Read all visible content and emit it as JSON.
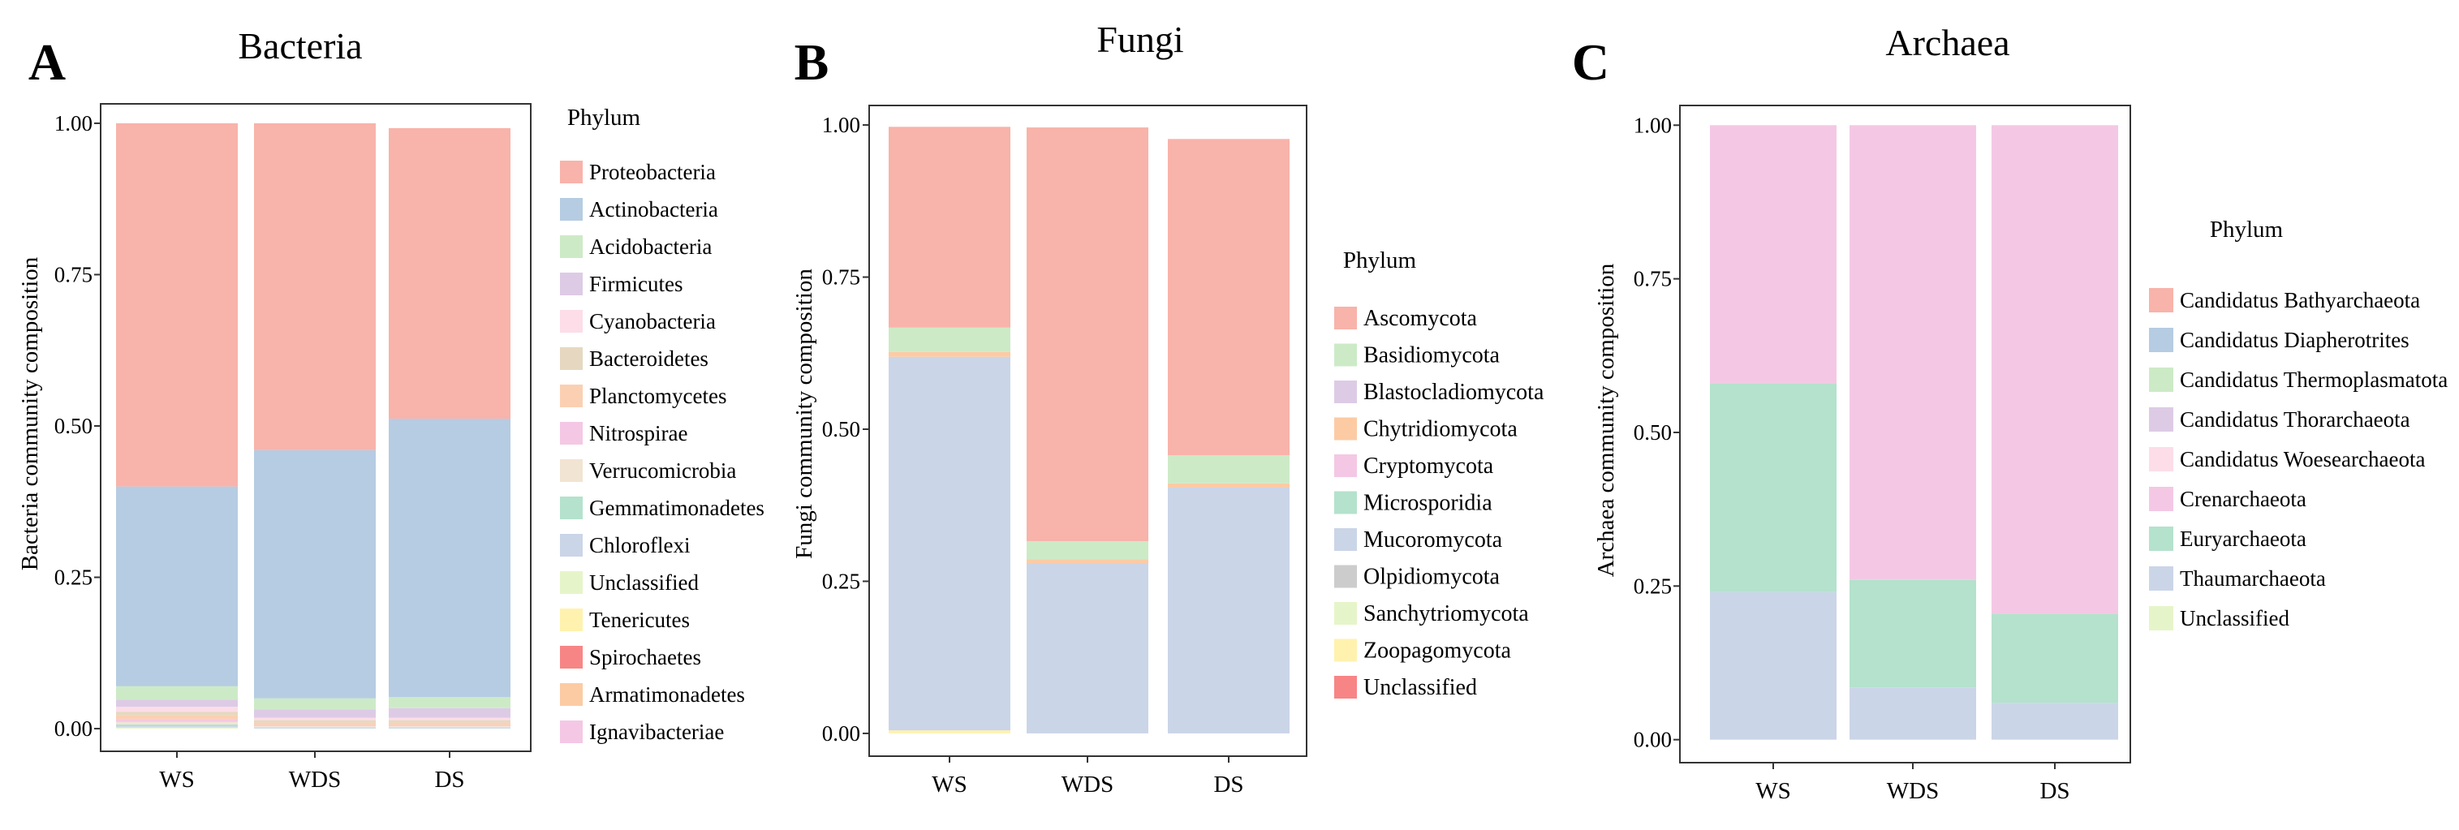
{
  "colors": {
    "Proteobacteria": "#F8B3AA",
    "Actinobacteria": "#B5CCE2",
    "Acidobacteria": "#CDEAC7",
    "Firmicutes": "#DDCBE6",
    "Cyanobacteria": "#FCDDE8",
    "Bacteroidetes": "#E6D8C0",
    "Planctomycetes": "#FBD0B2",
    "Nitrospirae": "#F4C8E4",
    "Verrucomicrobia": "#F2E4D2",
    "Gemmatimonadetes": "#B4E2CD",
    "Chloroflexi": "#CBD5E8",
    "Unclassified_bac": "#E6F5C9",
    "Tenericutes": "#FFF2AE",
    "Spirochaetes": "#F88585",
    "Armatimonadetes": "#FCCBA4",
    "Ignavibacteriae": "#F4C8E4",
    "Ascomycota": "#F8B3AA",
    "Basidiomycota": "#CDEAC7",
    "Blastocladiomycota": "#DDCBE6",
    "Chytridiomycota": "#FCCBA4",
    "Cryptomycota": "#F4C8E4",
    "Microsporidia": "#B4E2CD",
    "Mucoromycota": "#CBD5E8",
    "Olpidiomycota": "#CCCCCC",
    "Sanchytriomycota": "#E6F5C9",
    "Zoopagomycota": "#FFF2AE",
    "Unclassified_fungi": "#F88585",
    "Candidatus Bathyarchaeota": "#F8B3AA",
    "Candidatus Diapherotrites": "#B5CCE2",
    "Candidatus Thermoplasmatota": "#CDEAC7",
    "Candidatus Thorarchaeota": "#DDCBE6",
    "Candidatus Woesearchaeota": "#FCDDE8",
    "Crenarchaeota": "#F4C8E4",
    "Euryarchaeota": "#B4E2CD",
    "Thaumarchaeota": "#CBD5E8",
    "Unclassified_arch": "#E6F5C9"
  },
  "chart_data": [
    {
      "type": "bar",
      "stacked": true,
      "panel_letter": "A",
      "title": "Bacteria",
      "xlabel": "",
      "ylabel": "Bacteria community composition",
      "ylim": [
        0,
        1
      ],
      "yticks": [
        "0.00",
        "0.25",
        "0.50",
        "0.75",
        "1.00"
      ],
      "categories": [
        "WS",
        "WDS",
        "DS"
      ],
      "legend_title": "Phylum",
      "series": [
        {
          "name": "Proteobacteria",
          "color_key": "Proteobacteria",
          "values": [
            0.6,
            0.54,
            0.48
          ]
        },
        {
          "name": "Actinobacteria",
          "color_key": "Actinobacteria",
          "values": [
            0.33,
            0.41,
            0.46
          ]
        },
        {
          "name": "Acidobacteria",
          "color_key": "Acidobacteria",
          "values": [
            0.022,
            0.018,
            0.018
          ]
        },
        {
          "name": "Firmicutes",
          "color_key": "Firmicutes",
          "values": [
            0.012,
            0.014,
            0.016
          ]
        },
        {
          "name": "Cyanobacteria",
          "color_key": "Cyanobacteria",
          "values": [
            0.008,
            0.004,
            0.004
          ]
        },
        {
          "name": "Bacteroidetes",
          "color_key": "Bacteroidetes",
          "values": [
            0.006,
            0.004,
            0.004
          ]
        },
        {
          "name": "Planctomycetes",
          "color_key": "Planctomycetes",
          "values": [
            0.006,
            0.004,
            0.004
          ]
        },
        {
          "name": "Nitrospirae",
          "color_key": "Nitrospirae",
          "values": [
            0.005,
            0.002,
            0.002
          ]
        },
        {
          "name": "Verrucomicrobia",
          "color_key": "Verrucomicrobia",
          "values": [
            0.004,
            0.002,
            0.002
          ]
        },
        {
          "name": "Gemmatimonadetes",
          "color_key": "Gemmatimonadetes",
          "values": [
            0.003,
            0.001,
            0.001
          ]
        },
        {
          "name": "Chloroflexi",
          "color_key": "Chloroflexi",
          "values": [
            0.002,
            0.001,
            0.001
          ]
        },
        {
          "name": "Unclassified",
          "color_key": "Unclassified_bac",
          "values": [
            0.002,
            0,
            0
          ]
        },
        {
          "name": "Tenericutes",
          "color_key": "Tenericutes",
          "values": [
            0,
            0,
            0
          ]
        },
        {
          "name": "Spirochaetes",
          "color_key": "Spirochaetes",
          "values": [
            0,
            0,
            0
          ]
        },
        {
          "name": "Armatimonadetes",
          "color_key": "Armatimonadetes",
          "values": [
            0,
            0,
            0
          ]
        },
        {
          "name": "Ignavibacteriae",
          "color_key": "Ignavibacteriae",
          "values": [
            0,
            0,
            0
          ]
        }
      ]
    },
    {
      "type": "bar",
      "stacked": true,
      "panel_letter": "B",
      "title": "Fungi",
      "xlabel": "",
      "ylabel": "Fungi community composition",
      "ylim": [
        0,
        1
      ],
      "yticks": [
        "0.00",
        "0.25",
        "0.50",
        "0.75",
        "1.00"
      ],
      "categories": [
        "WS",
        "WDS",
        "DS"
      ],
      "legend_title": "Phylum",
      "series": [
        {
          "name": "Ascomycota",
          "color_key": "Ascomycota",
          "values": [
            0.33,
            0.68,
            0.52
          ]
        },
        {
          "name": "Basidiomycota",
          "color_key": "Basidiomycota",
          "values": [
            0.04,
            0.03,
            0.046
          ]
        },
        {
          "name": "Blastocladiomycota",
          "color_key": "Blastocladiomycota",
          "values": [
            0,
            0,
            0
          ]
        },
        {
          "name": "Chytridiomycota",
          "color_key": "Chytridiomycota",
          "values": [
            0.008,
            0.006,
            0.007
          ]
        },
        {
          "name": "Cryptomycota",
          "color_key": "Cryptomycota",
          "values": [
            0,
            0,
            0
          ]
        },
        {
          "name": "Microsporidia",
          "color_key": "Microsporidia",
          "values": [
            0,
            0,
            0
          ]
        },
        {
          "name": "Mucoromycota",
          "color_key": "Mucoromycota",
          "values": [
            0.614,
            0.28,
            0.404
          ]
        },
        {
          "name": "Olpidiomycota",
          "color_key": "Olpidiomycota",
          "values": [
            0,
            0,
            0
          ]
        },
        {
          "name": "Sanchytriomycota",
          "color_key": "Sanchytriomycota",
          "values": [
            0,
            0,
            0
          ]
        },
        {
          "name": "Zoopagomycota",
          "color_key": "Zoopagomycota",
          "values": [
            0.005,
            0,
            0
          ]
        },
        {
          "name": "Unclassified",
          "color_key": "Unclassified_fungi",
          "values": [
            0,
            0,
            0
          ]
        }
      ]
    },
    {
      "type": "bar",
      "stacked": true,
      "panel_letter": "C",
      "title": "Archaea",
      "xlabel": "",
      "ylabel": "Archaea community composition",
      "ylim": [
        0,
        1
      ],
      "yticks": [
        "0.00",
        "0.25",
        "0.50",
        "0.75",
        "1.00"
      ],
      "categories": [
        "WS",
        "WDS",
        "DS"
      ],
      "legend_title": "Phylum",
      "series": [
        {
          "name": "Candidatus Bathyarchaeota",
          "color_key": "Candidatus Bathyarchaeota",
          "values": [
            0,
            0,
            0
          ]
        },
        {
          "name": "Candidatus Diapherotrites",
          "color_key": "Candidatus Diapherotrites",
          "values": [
            0,
            0,
            0
          ]
        },
        {
          "name": "Candidatus Thermoplasmatota",
          "color_key": "Candidatus Thermoplasmatota",
          "values": [
            0,
            0,
            0
          ]
        },
        {
          "name": "Candidatus Thorarchaeota",
          "color_key": "Candidatus Thorarchaeota",
          "values": [
            0,
            0,
            0
          ]
        },
        {
          "name": "Candidatus Woesearchaeota",
          "color_key": "Candidatus Woesearchaeota",
          "values": [
            0,
            0,
            0
          ]
        },
        {
          "name": "Crenarchaeota",
          "color_key": "Crenarchaeota",
          "values": [
            0.42,
            0.74,
            0.795
          ]
        },
        {
          "name": "Euryarchaeota",
          "color_key": "Euryarchaeota",
          "values": [
            0.34,
            0.175,
            0.145
          ]
        },
        {
          "name": "Thaumarchaeota",
          "color_key": "Thaumarchaeota",
          "values": [
            0.24,
            0.085,
            0.06
          ]
        },
        {
          "name": "Unclassified",
          "color_key": "Unclassified_arch",
          "values": [
            0,
            0,
            0
          ]
        }
      ]
    }
  ]
}
